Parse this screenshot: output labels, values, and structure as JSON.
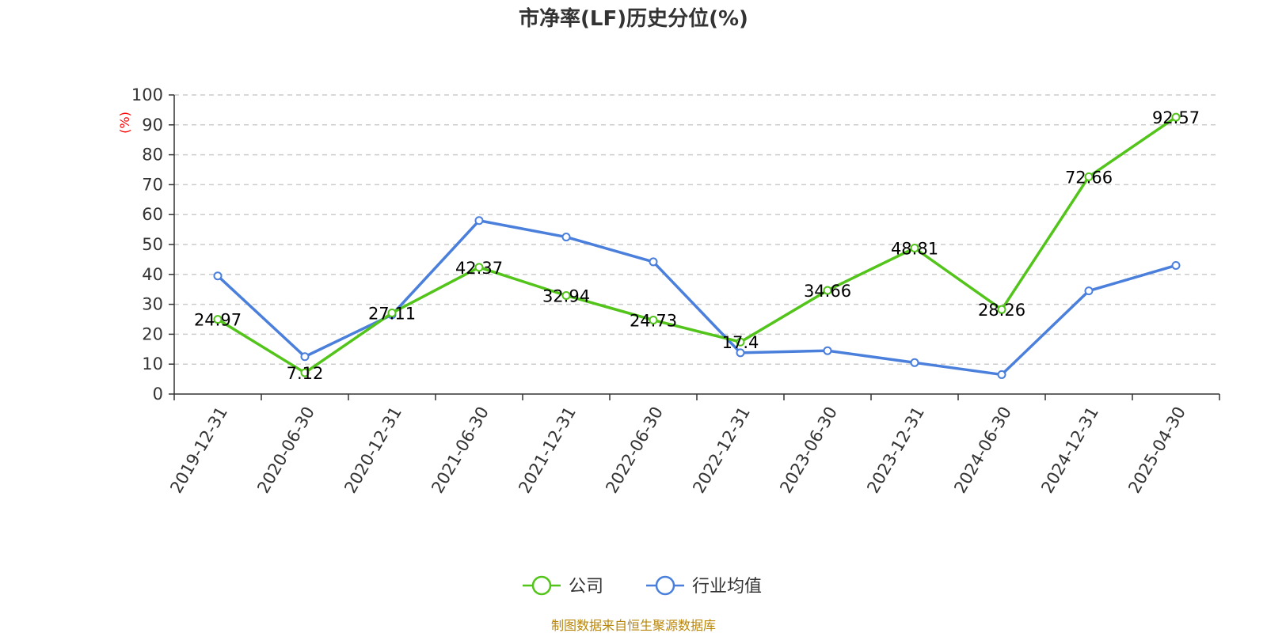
{
  "chart_data": {
    "type": "line",
    "title": "市净率(LF)历史分位(%)",
    "ylabel": "(%)",
    "categories": [
      "2019-12-31",
      "2020-06-30",
      "2020-12-31",
      "2021-06-30",
      "2021-12-31",
      "2022-06-30",
      "2022-12-31",
      "2023-06-30",
      "2023-12-31",
      "2024-06-30",
      "2024-12-31",
      "2025-04-30"
    ],
    "ylim": [
      0,
      100
    ],
    "yticks": [
      "0",
      "10",
      "20",
      "30",
      "40",
      "50",
      "60",
      "70",
      "80",
      "90",
      "100"
    ],
    "grid": true,
    "legend_position": "bottom-center",
    "series": [
      {
        "name": "公司",
        "color": "#52c41a",
        "values": [
          24.97,
          7.12,
          27.11,
          42.37,
          32.94,
          24.73,
          17.4,
          34.66,
          48.81,
          28.26,
          72.66,
          92.57
        ],
        "labels": [
          "24.97",
          "7.12",
          "27.11",
          "42.37",
          "32.94",
          "24.73",
          "17.4",
          "34.66",
          "48.81",
          "28.26",
          "72.66",
          "92.57"
        ]
      },
      {
        "name": "行业均值",
        "color": "#4a7fdc",
        "values": [
          39.5,
          12.5,
          26.5,
          58,
          52.5,
          44.2,
          13.8,
          14.5,
          10.5,
          6.5,
          34.5,
          43
        ]
      }
    ],
    "source": "制图数据来自恒生聚源数据库"
  }
}
